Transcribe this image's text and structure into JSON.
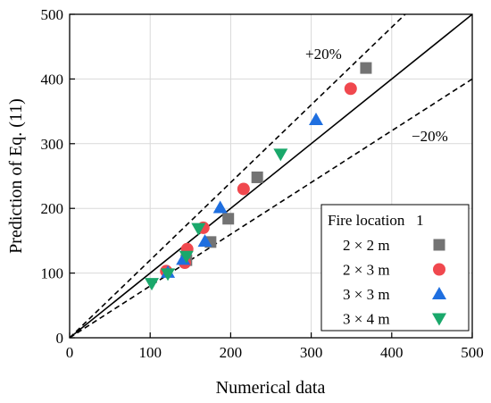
{
  "chart_data": {
    "type": "scatter",
    "xlabel": "Numerical data",
    "ylabel": "Prediction of Eq. (11)",
    "xlim": [
      0,
      500
    ],
    "ylim": [
      0,
      500
    ],
    "xticks": [
      0,
      100,
      200,
      300,
      400,
      500
    ],
    "yticks": [
      0,
      100,
      200,
      300,
      400,
      500
    ],
    "grid": true,
    "reference_lines": [
      {
        "label": "",
        "slope": 1.0,
        "style": "solid"
      },
      {
        "label": "+20%",
        "slope": 1.2,
        "style": "dashed"
      },
      {
        "label": "−20%",
        "slope": 0.8,
        "style": "dashed"
      }
    ],
    "legend": {
      "title": "Fire location   1",
      "placement": "bottom-right"
    },
    "series": [
      {
        "name": "2 × 2 m",
        "marker": "square",
        "color": "#737373",
        "points": [
          [
            368,
            417
          ],
          [
            233,
            248
          ],
          [
            197,
            184
          ],
          [
            175,
            148
          ],
          [
            145,
            120
          ]
        ]
      },
      {
        "name": "2 × 3 m",
        "marker": "circle",
        "color": "#f0484e",
        "points": [
          [
            349,
            385
          ],
          [
            216,
            230
          ],
          [
            166,
            170
          ],
          [
            146,
            137
          ],
          [
            143,
            116
          ],
          [
            120,
            103
          ]
        ]
      },
      {
        "name": "3 × 3 m",
        "marker": "triangle-up",
        "color": "#1f6fe0",
        "points": [
          [
            306,
            337
          ],
          [
            187,
            201
          ],
          [
            168,
            149
          ],
          [
            141,
            121
          ],
          [
            122,
            101
          ]
        ]
      },
      {
        "name": "3 × 4 m",
        "marker": "triangle-down",
        "color": "#1aa86b",
        "points": [
          [
            262,
            284
          ],
          [
            160,
            169
          ],
          [
            145,
            126
          ],
          [
            122,
            99
          ],
          [
            102,
            84
          ]
        ]
      }
    ]
  }
}
